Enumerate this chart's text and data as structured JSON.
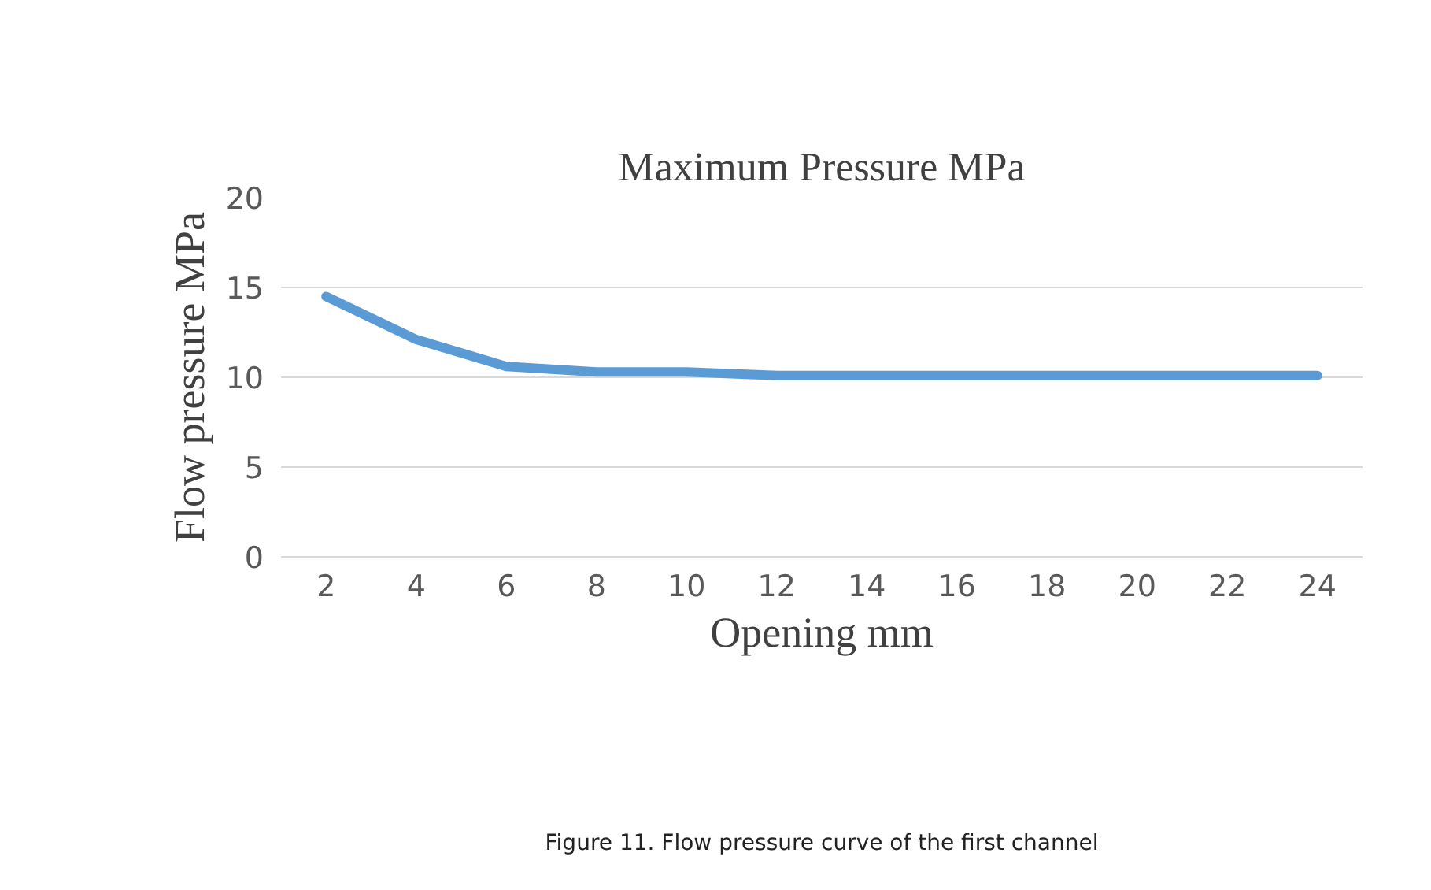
{
  "chart_data": {
    "type": "line",
    "title": "Maximum Pressure MPa",
    "xlabel": "Opening mm",
    "ylabel": "Flow pressure MPa",
    "x": [
      2,
      4,
      6,
      8,
      10,
      12,
      14,
      16,
      18,
      20,
      22,
      24
    ],
    "xlim": [
      1,
      25
    ],
    "xticks": [
      2,
      4,
      6,
      8,
      10,
      12,
      14,
      16,
      18,
      20,
      22,
      24
    ],
    "series": [
      {
        "color": "#5b9bd5",
        "values": [
          14.5,
          12.1,
          10.6,
          10.3,
          10.3,
          10.1,
          10.1,
          10.1,
          10.1,
          10.1,
          10.1,
          10.1
        ]
      }
    ],
    "ylim": [
      0,
      20
    ],
    "yticks": [
      0,
      5,
      10,
      15,
      20
    ],
    "grid": "y",
    "annotations": [
      "Figure 11. Flow pressure curve of the first channel"
    ]
  }
}
